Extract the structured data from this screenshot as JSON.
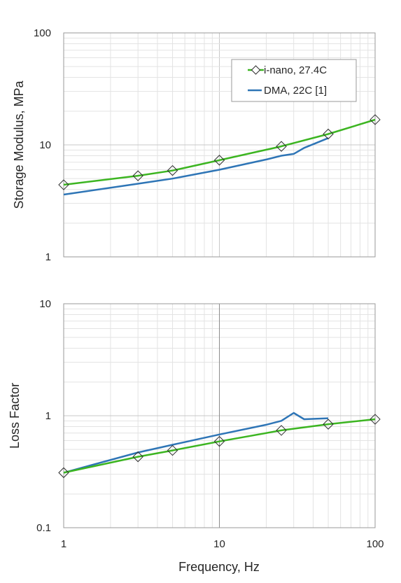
{
  "chart_data": [
    {
      "type": "line",
      "xscale": "log",
      "yscale": "log",
      "xlim": [
        1,
        100
      ],
      "ylim": [
        1,
        100
      ],
      "xlabel": "",
      "ylabel": "Storage Modulus, MPa",
      "x_ticks": [
        "1",
        "10",
        "100"
      ],
      "y_ticks": [
        "1",
        "10",
        "100"
      ],
      "grid": true,
      "legend_position": "top-right",
      "series": [
        {
          "name": "i-nano, 27.4C",
          "color": "#3cb521",
          "marker": "diamond",
          "x": [
            1,
            3,
            5,
            10,
            25,
            50,
            100
          ],
          "y": [
            4.4,
            5.3,
            5.9,
            7.3,
            9.7,
            12.5,
            16.8
          ]
        },
        {
          "name": "DMA, 22C [1]",
          "color": "#2e75b6",
          "marker": "none",
          "x": [
            1,
            3,
            5,
            10,
            20,
            25,
            30,
            35,
            50
          ],
          "y": [
            3.6,
            4.5,
            5.0,
            6.0,
            7.4,
            8.0,
            8.3,
            9.4,
            11.5
          ]
        }
      ]
    },
    {
      "type": "line",
      "xscale": "log",
      "yscale": "log",
      "xlim": [
        1,
        100
      ],
      "ylim": [
        0.1,
        10
      ],
      "xlabel": "Frequency, Hz",
      "ylabel": "Loss Factor",
      "x_ticks": [
        "1",
        "10",
        "100"
      ],
      "y_ticks": [
        "0.1",
        "1",
        "10"
      ],
      "grid": true,
      "series": [
        {
          "color": "#3cb521",
          "marker": "diamond",
          "x": [
            1,
            3,
            5,
            10,
            25,
            50,
            100
          ],
          "y": [
            0.31,
            0.43,
            0.49,
            0.59,
            0.74,
            0.84,
            0.93
          ]
        },
        {
          "color": "#2e75b6",
          "marker": "none",
          "x": [
            1,
            3,
            5,
            10,
            20,
            25,
            30,
            35,
            50
          ],
          "y": [
            0.31,
            0.47,
            0.55,
            0.68,
            0.83,
            0.9,
            1.06,
            0.93,
            0.95
          ]
        }
      ]
    }
  ]
}
